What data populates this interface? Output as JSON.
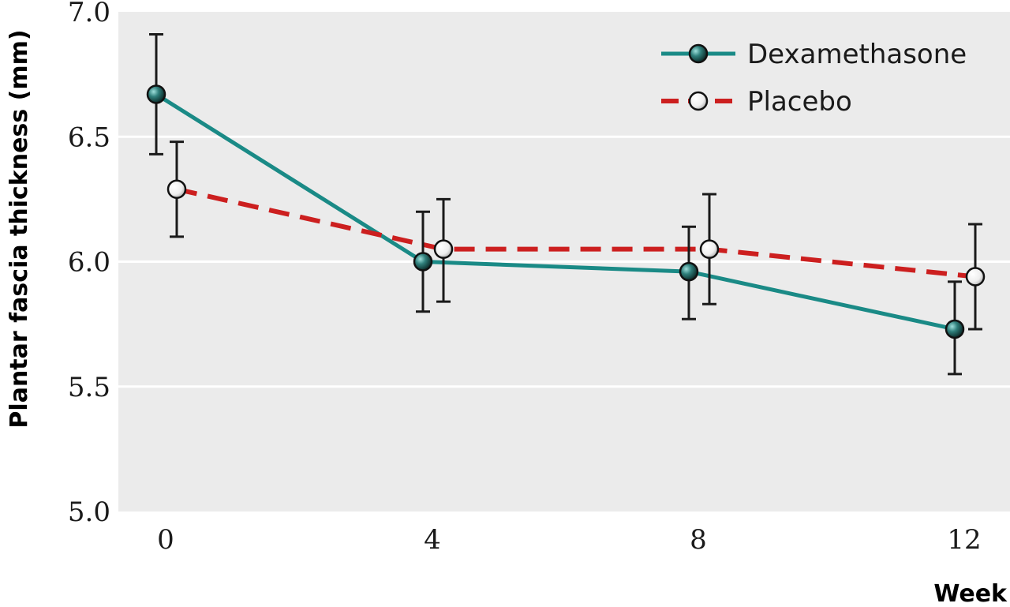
{
  "chart_data": {
    "type": "line",
    "title": "",
    "xlabel": "Week",
    "ylabel": "Plantar fascia thickness (mm)",
    "x": [
      0,
      4,
      8,
      12
    ],
    "x_tick_labels": [
      "0",
      "4",
      "8",
      "12"
    ],
    "y_tick_labels": [
      "5.0",
      "5.5",
      "6.0",
      "6.5",
      "7.0"
    ],
    "y_ticks": [
      5.0,
      5.5,
      6.0,
      6.5,
      7.0
    ],
    "ylim": [
      5.0,
      7.0
    ],
    "xlim": [
      -0.5,
      12.5
    ],
    "grid": true,
    "legend_position": "top-right",
    "background_color": "#ebebeb",
    "gridline_color": "#ffffff",
    "series": [
      {
        "name": "Dexamethasone",
        "color": "#1a8a86",
        "line_style": "solid",
        "marker": "filled-dark-teal-circle",
        "values": [
          6.67,
          6.0,
          5.96,
          5.73
        ],
        "error_low": [
          6.43,
          5.8,
          5.77,
          5.55
        ],
        "error_high": [
          6.91,
          6.2,
          6.14,
          5.92
        ]
      },
      {
        "name": "Placebo",
        "color": "#cc1f1f",
        "line_style": "dashed",
        "marker": "open-white-circle",
        "values": [
          6.29,
          6.05,
          6.05,
          5.94
        ],
        "error_low": [
          6.1,
          5.84,
          5.83,
          5.73
        ],
        "error_high": [
          6.48,
          6.25,
          6.27,
          6.15
        ]
      }
    ]
  }
}
